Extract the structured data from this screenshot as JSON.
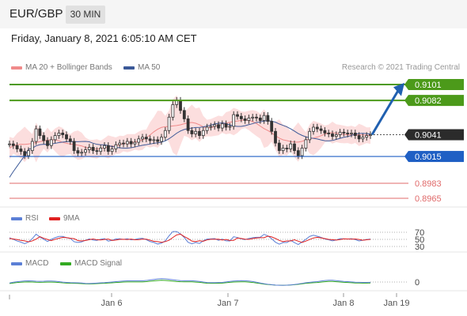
{
  "header": {
    "pair": "EUR/GBP",
    "timeframe": "30 MIN"
  },
  "timestamp": "Friday, January 8, 2021 6:05:10 AM CET",
  "credit": "Research © 2021 Trading Central",
  "legends": {
    "price": [
      {
        "label": "MA 20 + Bollinger Bands",
        "color": "#f08a8a"
      },
      {
        "label": "MA 50",
        "color": "#3b5998"
      }
    ],
    "rsi": [
      {
        "label": "RSI",
        "color": "#5b7fd6"
      },
      {
        "label": "9MA",
        "color": "#e02020"
      }
    ],
    "macd": [
      {
        "label": "MACD",
        "color": "#5b7fd6"
      },
      {
        "label": "MACD Signal",
        "color": "#33aa22"
      }
    ]
  },
  "colors": {
    "resistance": "#4c9a1a",
    "support": "#1f5fc4",
    "target_low": "#e06a6a",
    "current": "#2b2b2b",
    "arrow": "#2060b0",
    "candle": "#333333"
  },
  "chart_data": {
    "type": "candlestick",
    "x_ticks": [
      "Jan 6",
      "Jan 7",
      "Jan 8",
      "Jan 19"
    ],
    "price_levels": [
      {
        "value": "0.9101",
        "kind": "resistance"
      },
      {
        "value": "0.9082",
        "kind": "resistance"
      },
      {
        "value": "0.9041",
        "kind": "current"
      },
      {
        "value": "0.9015",
        "kind": "support"
      },
      {
        "value": "0.8983",
        "kind": "target"
      },
      {
        "value": "0.8965",
        "kind": "target"
      }
    ],
    "rsi_levels": [
      "70",
      "50",
      "30"
    ],
    "macd_levels": [
      "0"
    ],
    "price_series": [
      0.903,
      0.9028,
      0.9024,
      0.9021,
      0.9016,
      0.9022,
      0.9033,
      0.9048,
      0.904,
      0.9034,
      0.9028,
      0.9035,
      0.904,
      0.9043,
      0.9041,
      0.9036,
      0.9033,
      0.9022,
      0.9019,
      0.902,
      0.9023,
      0.9026,
      0.9022,
      0.9021,
      0.9025,
      0.9028,
      0.9021,
      0.9024,
      0.9029,
      0.9031,
      0.903,
      0.9033,
      0.903,
      0.9032,
      0.9036,
      0.9038,
      0.9036,
      0.9034,
      0.9035,
      0.9033,
      0.9038,
      0.9046,
      0.9062,
      0.9077,
      0.9082,
      0.907,
      0.906,
      0.9046,
      0.9042,
      0.9045,
      0.904,
      0.9046,
      0.905,
      0.9051,
      0.9053,
      0.9049,
      0.9054,
      0.905,
      0.9051,
      0.9065,
      0.9063,
      0.906,
      0.9058,
      0.9061,
      0.9062,
      0.9061,
      0.9058,
      0.9064,
      0.9057,
      0.9045,
      0.9031,
      0.9022,
      0.9025,
      0.9024,
      0.903,
      0.9022,
      0.9016,
      0.9025,
      0.9035,
      0.9045,
      0.905,
      0.9048,
      0.9046,
      0.9043,
      0.9042,
      0.9039,
      0.9041,
      0.9044,
      0.9043,
      0.9042,
      0.9043,
      0.904,
      0.9036,
      0.9038,
      0.904,
      0.9041
    ]
  }
}
